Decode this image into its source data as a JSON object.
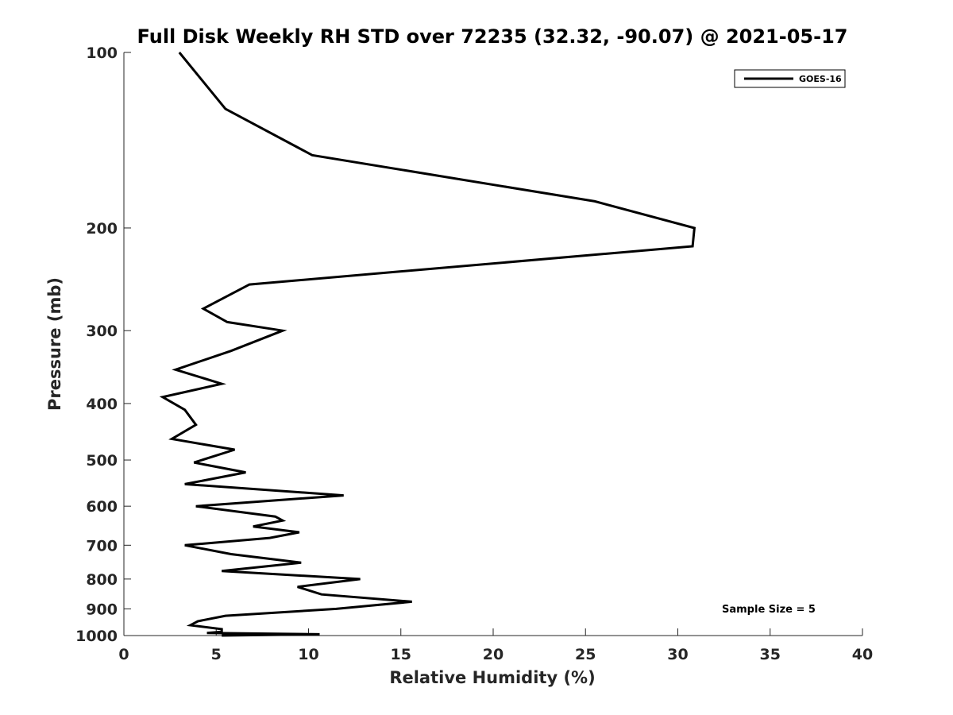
{
  "chart_data": {
    "type": "line",
    "title": "Full Disk Weekly RH STD over 72235 (32.32, -90.07) @ 2021-05-17",
    "xlabel": "Relative Humidity (%)",
    "ylabel": "Pressure (mb)",
    "xlim": [
      0,
      40
    ],
    "ylim": [
      100,
      1000
    ],
    "yscale": "log",
    "yreversed": true,
    "xticks": [
      0,
      5,
      10,
      15,
      20,
      25,
      30,
      35,
      40
    ],
    "yticks": [
      100,
      200,
      300,
      400,
      500,
      600,
      700,
      800,
      900,
      1000
    ],
    "grid": false,
    "legend_position": "top-right",
    "series": [
      {
        "name": "GOES-16",
        "color": "#000000",
        "x": [
          3.0,
          5.5,
          10.2,
          25.5,
          30.9,
          30.8,
          6.8,
          4.3,
          5.6,
          8.6,
          5.8,
          2.8,
          5.3,
          2.1,
          3.3,
          3.9,
          2.6,
          6.0,
          3.8,
          6.6,
          3.3,
          11.9,
          3.9,
          8.2,
          8.6,
          7.0,
          9.5,
          7.9,
          3.3,
          5.8,
          9.6,
          5.3,
          12.8,
          9.4,
          10.7,
          15.6,
          11.5,
          5.5,
          4.0,
          3.6,
          5.3,
          5.3,
          4.5,
          10.6,
          5.3
        ],
        "y": [
          100,
          125,
          150,
          180,
          200,
          215,
          250,
          275,
          290,
          300,
          325,
          350,
          370,
          390,
          410,
          435,
          460,
          480,
          505,
          525,
          550,
          575,
          600,
          625,
          635,
          650,
          665,
          680,
          700,
          725,
          750,
          775,
          800,
          825,
          850,
          875,
          900,
          925,
          945,
          960,
          975,
          985,
          990,
          995,
          1000
        ]
      }
    ],
    "annotation": "Sample Size = 5"
  }
}
